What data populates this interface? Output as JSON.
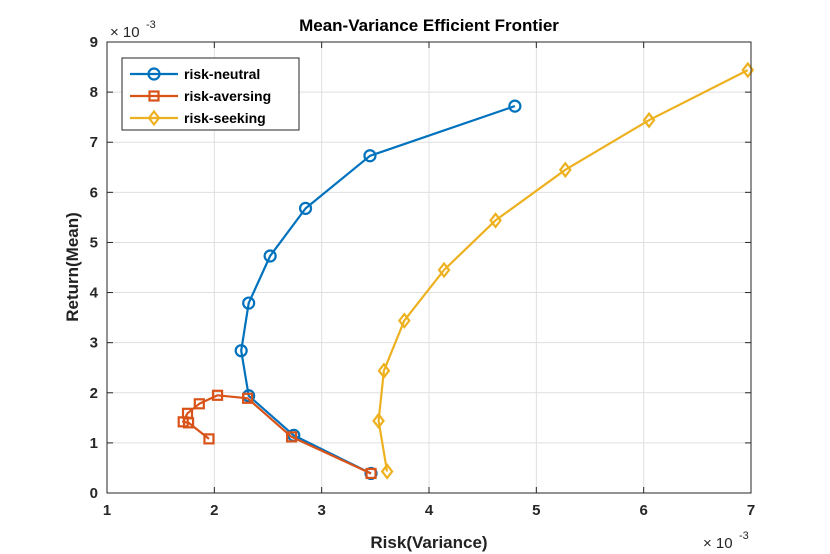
{
  "chart_data": {
    "type": "line",
    "title": "Mean-Variance Efficient Frontier",
    "xlabel": "Risk(Variance)",
    "ylabel": "Return(Mean)",
    "x_multiplier": {
      "base": "× 10",
      "exp": "-3"
    },
    "y_multiplier": {
      "base": "× 10",
      "exp": "-3"
    },
    "xlim": [
      1,
      7
    ],
    "ylim": [
      0,
      9
    ],
    "xticks": [
      1,
      2,
      3,
      4,
      5,
      6,
      7
    ],
    "yticks": [
      0,
      1,
      2,
      3,
      4,
      5,
      6,
      7,
      8,
      9
    ],
    "grid": true,
    "legend_location": "top-left",
    "series": [
      {
        "name": "risk-neutral",
        "color": "#0072BD",
        "marker": "circle",
        "x": [
          3.46,
          2.74,
          2.32,
          2.25,
          2.32,
          2.52,
          2.85,
          3.45,
          4.8
        ],
        "y": [
          0.39,
          1.15,
          1.94,
          2.84,
          3.79,
          4.73,
          5.68,
          6.73,
          7.72
        ]
      },
      {
        "name": "risk-aversing",
        "color": "#D95319",
        "marker": "square",
        "x": [
          3.46,
          2.72,
          2.31,
          2.03,
          1.86,
          1.75,
          1.71,
          1.76,
          1.95
        ],
        "y": [
          0.39,
          1.12,
          1.89,
          1.95,
          1.78,
          1.59,
          1.42,
          1.4,
          1.08
        ]
      },
      {
        "name": "risk-seeking",
        "color": "#EDB120",
        "marker": "diamond",
        "x": [
          3.61,
          3.53,
          3.58,
          3.77,
          4.14,
          4.62,
          5.27,
          6.05,
          6.97
        ],
        "y": [
          0.43,
          1.44,
          2.44,
          3.44,
          4.45,
          5.44,
          6.45,
          7.44,
          8.44
        ]
      }
    ]
  }
}
